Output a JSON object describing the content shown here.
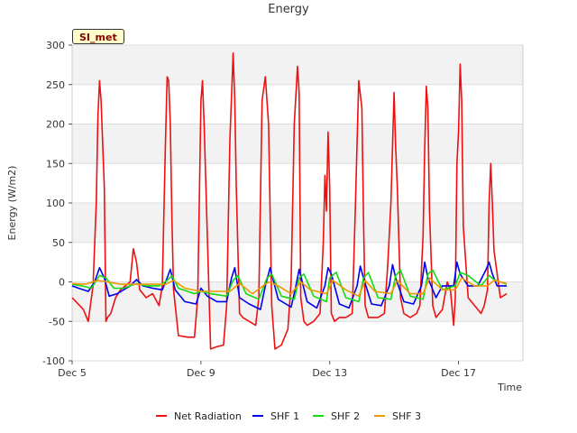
{
  "chart_data": {
    "type": "line",
    "title": "Energy",
    "xlabel": "Time",
    "ylabel": "Energy (W/m2)",
    "site_badge": "SI_met",
    "ylim": [
      -100,
      300
    ],
    "xlim": [
      5.0,
      19.0
    ],
    "y_ticks": [
      -100,
      -50,
      0,
      50,
      100,
      150,
      200,
      250,
      300
    ],
    "x_ticks": [
      {
        "value": 5,
        "label": "Dec 5"
      },
      {
        "value": 9,
        "label": "Dec 9"
      },
      {
        "value": 13,
        "label": "Dec 13"
      },
      {
        "value": 17,
        "label": "Dec 17"
      }
    ],
    "series": [
      {
        "name": "Net Radiation",
        "color": "#ee1111",
        "x": [
          5.0,
          5.35,
          5.5,
          5.65,
          5.75,
          5.8,
          5.85,
          5.9,
          6.0,
          6.05,
          6.1,
          6.2,
          6.35,
          6.5,
          6.8,
          6.9,
          7.0,
          7.1,
          7.2,
          7.3,
          7.5,
          7.7,
          7.8,
          7.9,
          7.95,
          8.0,
          8.05,
          8.1,
          8.15,
          8.3,
          8.6,
          8.8,
          8.9,
          9.0,
          9.05,
          9.1,
          9.3,
          9.5,
          9.7,
          9.8,
          9.9,
          10.0,
          10.05,
          10.1,
          10.2,
          10.3,
          10.5,
          10.7,
          10.8,
          10.9,
          11.0,
          11.1,
          11.2,
          11.3,
          11.5,
          11.7,
          11.8,
          11.9,
          12.0,
          12.05,
          12.1,
          12.2,
          12.3,
          12.5,
          12.7,
          12.8,
          12.85,
          12.9,
          12.95,
          13.0,
          13.05,
          13.15,
          13.3,
          13.5,
          13.7,
          13.8,
          13.9,
          14.0,
          14.05,
          14.1,
          14.2,
          14.3,
          14.5,
          14.7,
          14.8,
          14.9,
          15.0,
          15.05,
          15.1,
          15.2,
          15.3,
          15.5,
          15.7,
          15.8,
          15.9,
          15.95,
          16.0,
          16.05,
          16.1,
          16.2,
          16.3,
          16.5,
          16.65,
          16.75,
          16.85,
          16.9,
          16.95,
          17.0,
          17.05,
          17.1,
          17.15,
          17.3,
          17.5,
          17.7,
          17.8,
          17.9,
          17.95,
          18.0,
          18.05,
          18.1,
          18.3,
          18.5
        ],
        "values": [
          -20,
          -35,
          -50,
          -5,
          100,
          210,
          255,
          230,
          120,
          -50,
          -45,
          -40,
          -20,
          -10,
          0,
          42,
          25,
          -10,
          -15,
          -20,
          -15,
          -30,
          -5,
          180,
          260,
          255,
          200,
          80,
          -10,
          -68,
          -70,
          -70,
          -20,
          230,
          255,
          200,
          -85,
          -82,
          -80,
          -30,
          180,
          290,
          230,
          120,
          -40,
          -45,
          -50,
          -55,
          -20,
          230,
          260,
          200,
          -30,
          -85,
          -80,
          -60,
          0,
          200,
          273,
          240,
          -20,
          -50,
          -55,
          -50,
          -40,
          50,
          135,
          90,
          190,
          120,
          -40,
          -50,
          -45,
          -45,
          -40,
          100,
          255,
          220,
          80,
          -30,
          -45,
          -45,
          -45,
          -40,
          20,
          100,
          240,
          170,
          120,
          -20,
          -40,
          -45,
          -40,
          -30,
          60,
          170,
          248,
          220,
          90,
          -30,
          -45,
          -35,
          0,
          -10,
          -55,
          -20,
          150,
          190,
          276,
          230,
          70,
          -20,
          -30,
          -40,
          -30,
          -10,
          100,
          150,
          100,
          40,
          -20,
          -15
        ]
      },
      {
        "name": "SHF 1",
        "color": "#0000ee",
        "x": [
          5.0,
          5.2,
          5.5,
          5.7,
          5.85,
          6.0,
          6.15,
          6.4,
          6.8,
          7.0,
          7.2,
          7.5,
          7.8,
          7.95,
          8.05,
          8.2,
          8.5,
          8.85,
          9.0,
          9.2,
          9.5,
          9.8,
          9.95,
          10.05,
          10.2,
          10.5,
          10.85,
          11.0,
          11.15,
          11.4,
          11.8,
          11.95,
          12.05,
          12.3,
          12.6,
          12.85,
          12.95,
          13.05,
          13.3,
          13.6,
          13.85,
          13.95,
          14.05,
          14.3,
          14.6,
          14.85,
          14.95,
          15.05,
          15.3,
          15.6,
          15.85,
          15.95,
          16.05,
          16.3,
          16.5,
          16.85,
          16.95,
          17.05,
          17.3,
          17.6,
          17.85,
          17.95,
          18.05,
          18.2,
          18.5
        ],
        "values": [
          -5,
          -8,
          -12,
          0,
          18,
          5,
          -18,
          -15,
          -5,
          3,
          -5,
          -8,
          -10,
          5,
          16,
          -10,
          -25,
          -28,
          -8,
          -18,
          -25,
          -25,
          5,
          18,
          -20,
          -28,
          -35,
          -5,
          18,
          -22,
          -32,
          -5,
          16,
          -25,
          -33,
          -5,
          18,
          10,
          -28,
          -33,
          -5,
          20,
          5,
          -28,
          -30,
          -5,
          22,
          5,
          -25,
          -28,
          -5,
          25,
          5,
          -20,
          -5,
          -5,
          25,
          10,
          -5,
          -5,
          15,
          25,
          10,
          -5,
          -5
        ]
      },
      {
        "name": "SHF 2",
        "color": "#11dd11",
        "x": [
          5.0,
          5.3,
          5.6,
          5.85,
          6.05,
          6.3,
          6.6,
          7.0,
          7.3,
          7.7,
          7.95,
          8.1,
          8.3,
          8.8,
          9.0,
          9.3,
          9.8,
          10.0,
          10.15,
          10.4,
          10.8,
          11.05,
          11.2,
          11.5,
          11.9,
          12.05,
          12.2,
          12.5,
          12.9,
          13.0,
          13.2,
          13.5,
          13.9,
          14.05,
          14.2,
          14.5,
          14.9,
          15.05,
          15.2,
          15.5,
          15.9,
          16.05,
          16.2,
          16.5,
          16.9,
          17.05,
          17.3,
          17.7,
          17.95,
          18.1,
          18.5
        ],
        "values": [
          -3,
          -5,
          -8,
          8,
          5,
          -8,
          -8,
          -2,
          -5,
          -5,
          2,
          8,
          -8,
          -15,
          -12,
          -15,
          -18,
          2,
          8,
          -15,
          -22,
          5,
          10,
          -18,
          -22,
          5,
          10,
          -18,
          -25,
          5,
          12,
          -20,
          -25,
          5,
          12,
          -20,
          -22,
          8,
          15,
          -18,
          -22,
          10,
          15,
          -10,
          -5,
          12,
          8,
          -5,
          8,
          3,
          -3
        ]
      },
      {
        "name": "SHF 3",
        "color": "#ee9900",
        "x": [
          5.0,
          5.4,
          5.8,
          6.1,
          6.5,
          7.0,
          7.5,
          7.9,
          8.15,
          8.5,
          9.0,
          9.4,
          9.9,
          10.2,
          10.6,
          11.1,
          11.4,
          11.8,
          12.1,
          12.4,
          12.9,
          13.1,
          13.5,
          13.9,
          14.1,
          14.4,
          14.9,
          15.1,
          15.5,
          15.9,
          16.1,
          16.5,
          16.9,
          17.1,
          17.5,
          17.9,
          18.1,
          18.5
        ],
        "values": [
          -2,
          -3,
          2,
          0,
          -3,
          -3,
          -3,
          -3,
          2,
          -8,
          -12,
          -12,
          -12,
          -2,
          -15,
          0,
          -5,
          -15,
          0,
          -10,
          -15,
          2,
          -10,
          -18,
          2,
          -12,
          -15,
          2,
          -15,
          -15,
          5,
          -10,
          -10,
          5,
          -5,
          -5,
          2,
          -2
        ]
      }
    ]
  }
}
